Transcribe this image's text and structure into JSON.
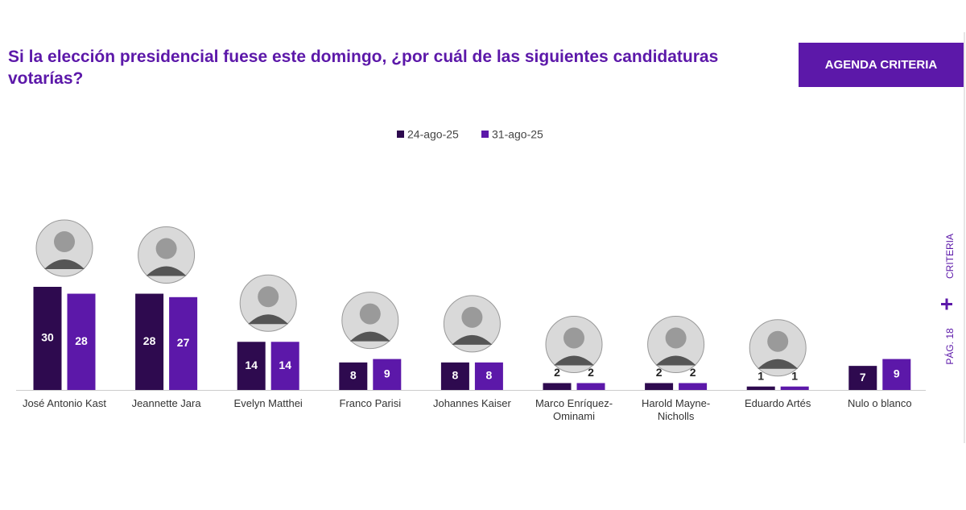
{
  "chart_data": {
    "type": "bar",
    "title": "Si la elección presidencial fuese este domingo, ¿por cuál de las siguientes candidaturas votarías?",
    "categories": [
      "José Antonio Kast",
      "Jeannette Jara",
      "Evelyn Matthei",
      "Franco Parisi",
      "Johannes Kaiser",
      "Marco Enríquez-Ominami",
      "Harold Mayne-Nicholls",
      "Eduardo Artés",
      "Nulo o blanco"
    ],
    "series": [
      {
        "name": "24-ago-25",
        "color": "#2e0a4f",
        "values": [
          30,
          28,
          14,
          8,
          8,
          2,
          2,
          1,
          7
        ]
      },
      {
        "name": "31-ago-25",
        "color": "#5c18a9",
        "values": [
          28,
          27,
          14,
          9,
          8,
          2,
          2,
          1,
          9
        ]
      }
    ]
  },
  "brand": "AGENDA CRITERIA",
  "side": {
    "brand": "CRITERIA",
    "page": "PÁG. 18"
  }
}
